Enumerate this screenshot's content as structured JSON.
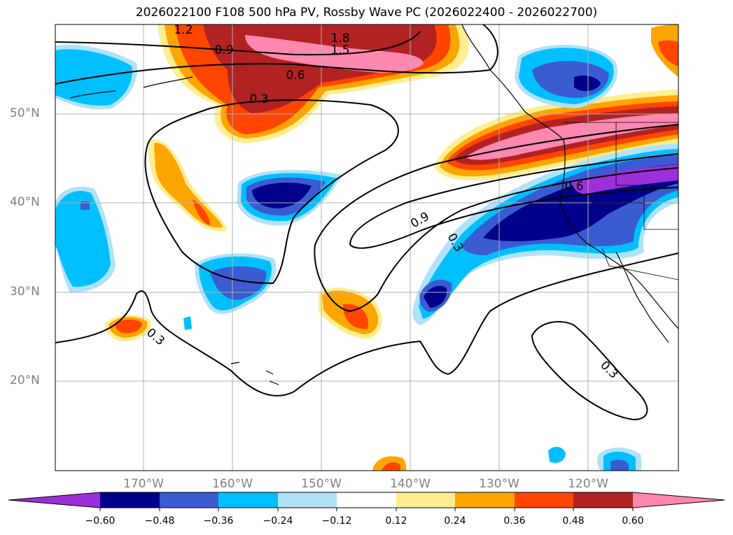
{
  "title": "2026022100 F108 500 hPa PV, Rossby Wave PC (2026022400 - 2026022700)",
  "lat_labels": [
    "50°N",
    "40°N",
    "30°N",
    "20°N"
  ],
  "lon_labels": [
    "170°W",
    "160°W",
    "150°W",
    "140°W",
    "130°W",
    "120°W"
  ],
  "contour_labels": [
    "1.2",
    "1.8",
    "1.5",
    "0.9",
    "0.6",
    "0.3",
    "0.9",
    "0.6",
    "0.3",
    "0.3",
    "0.3"
  ],
  "colorbar": {
    "ticks": [
      "−0.60",
      "−0.48",
      "−0.36",
      "−0.24",
      "−0.12",
      "0.12",
      "0.24",
      "0.36",
      "0.48",
      "0.60"
    ],
    "colors": [
      "#9b30d9",
      "#00008b",
      "#3a5bd1",
      "#00bfff",
      "#b0e2fa",
      "#ffffff",
      "#ffee90",
      "#ffa500",
      "#ff4500",
      "#b22222",
      "#ff88b0"
    ]
  },
  "colors": {
    "gridline": "#b0b0b0",
    "label": "#808080"
  }
}
